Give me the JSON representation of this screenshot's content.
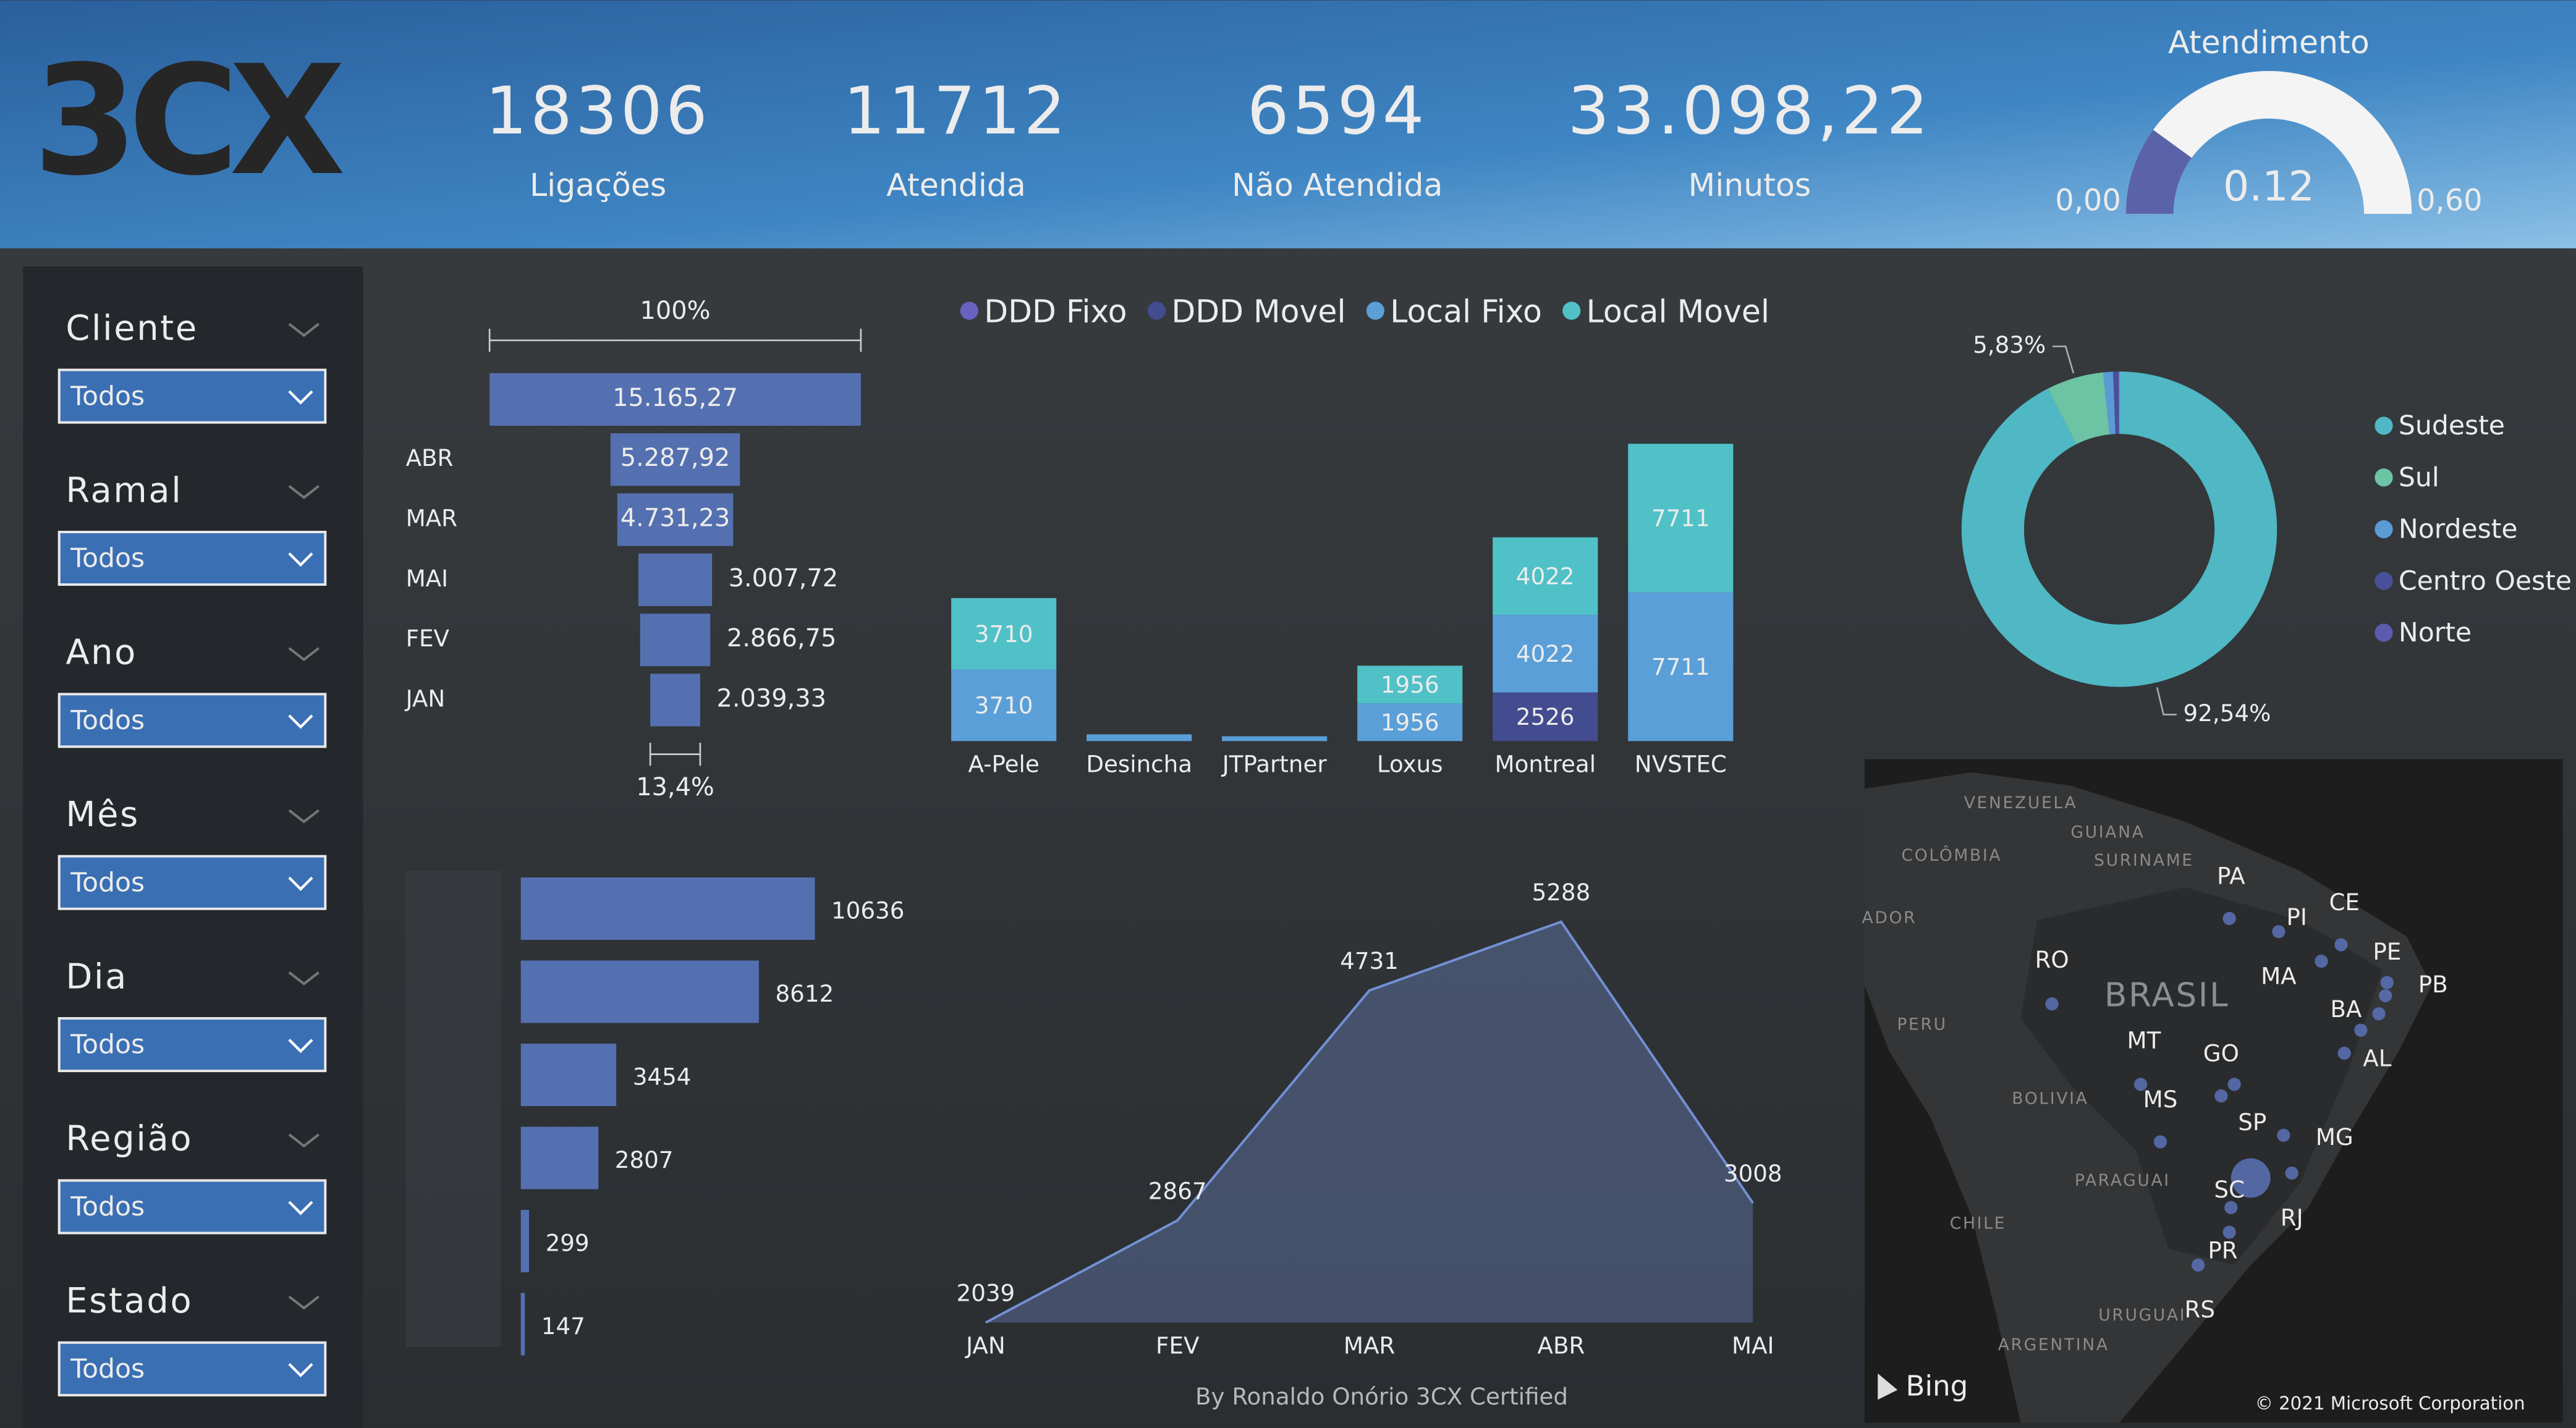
{
  "header": {
    "logo": "3CX"
  },
  "kpis": [
    {
      "value": "18306",
      "label": "Ligações"
    },
    {
      "value": "11712",
      "label": "Atendida"
    },
    {
      "value": "6594",
      "label": "Não Atendida"
    },
    {
      "value": "33.098,22",
      "label": "Minutos"
    }
  ],
  "filters": [
    {
      "label": "Cliente",
      "value": "Todos"
    },
    {
      "label": "Ramal",
      "value": "Todos"
    },
    {
      "label": "Ano",
      "value": "Todos"
    },
    {
      "label": "Mês",
      "value": "Todos"
    },
    {
      "label": "Dia",
      "value": "Todos"
    },
    {
      "label": "Região",
      "value": "Todos"
    },
    {
      "label": "Estado",
      "value": "Todos"
    }
  ],
  "chart_data": [
    {
      "type": "gauge",
      "title": "Atendimento",
      "value": 0.12,
      "color": "#5b63a8",
      "ylim": [
        0,
        0.6
      ],
      "yticks": [
        {
          "value": 0,
          "label": "0,00"
        },
        {
          "value": 0.6,
          "label": "0,60"
        }
      ]
    },
    {
      "type": "funnel",
      "top_label": "100%",
      "bottom_label": "13,4%",
      "color": "#5470b0",
      "categories": [
        null,
        "ABR",
        "MAR",
        "MAI",
        "FEV",
        "JAN"
      ],
      "values": [
        15165.27,
        5287.92,
        4731.23,
        3007.72,
        2866.75,
        2039.33
      ],
      "value_labels": [
        "15.165,27",
        "5.287,92",
        "4.731,23",
        "3.007,72",
        "2.866,75",
        "2.039,33"
      ]
    },
    {
      "type": "bar",
      "stacked": true,
      "categories": [
        "A-Pele",
        "Desincha",
        "JTPartner",
        "Loxus",
        "Montreal",
        "NVSTEC"
      ],
      "series": [
        {
          "name": "DDD Fixo",
          "color": "#6a62c0",
          "values": [
            null,
            null,
            null,
            null,
            null,
            null
          ]
        },
        {
          "name": "DDD Movel",
          "color": "#434c8f",
          "values": [
            null,
            null,
            null,
            null,
            2526,
            null
          ]
        },
        {
          "name": "Local Fixo",
          "color": "#5a9fd8",
          "values": [
            3710,
            350,
            250,
            1956,
            4022,
            7711
          ]
        },
        {
          "name": "Local Movel",
          "color": "#4fc1c7",
          "values": [
            3710,
            null,
            null,
            1956,
            4022,
            7711
          ]
        }
      ]
    },
    {
      "type": "pie",
      "categories": [
        "Sudeste",
        "Sul",
        "Nordeste",
        "Centro Oeste",
        "Norte"
      ],
      "values": [
        92.54,
        5.83,
        1.0,
        0.5,
        0.13
      ],
      "value_labels": [
        "92,54%",
        "5,83%",
        null,
        null,
        null
      ],
      "colors": [
        "#4fb8c4",
        "#6cc4a4",
        "#5b9bd5",
        "#4a4f9a",
        "#5c5bb0"
      ]
    },
    {
      "type": "bar",
      "orientation": "horizontal",
      "color": "#5470b0",
      "categories": [
        null,
        null,
        null,
        null,
        null,
        null
      ],
      "values": [
        10636,
        8612,
        3454,
        2807,
        299,
        147
      ]
    },
    {
      "type": "area",
      "color": "#7390d4",
      "categories": [
        "JAN",
        "FEV",
        "MAR",
        "ABR",
        "MAI"
      ],
      "values": [
        2039,
        2867,
        4731,
        5288,
        3008
      ]
    }
  ],
  "map": {
    "countries": [
      "VENEZUELA",
      "COLÔMBIA",
      "GUIANA",
      "SURINAME",
      "ADOR",
      "PERU",
      "BOLIVIA",
      "PARAGUAI",
      "CHILE",
      "URUGUAI",
      "ARGENTINA",
      "BRASIL"
    ],
    "states": [
      "PA",
      "PI",
      "CE",
      "RO",
      "MA",
      "PE",
      "PB",
      "BA",
      "MT",
      "GO",
      "AL",
      "MS",
      "SP",
      "MG",
      "SC",
      "RJ",
      "PR",
      "RS"
    ],
    "provider": "Bing",
    "copyright": "© 2021 Microsoft Corporation"
  },
  "footer": "By  Ronaldo Onório  3CX Certified"
}
